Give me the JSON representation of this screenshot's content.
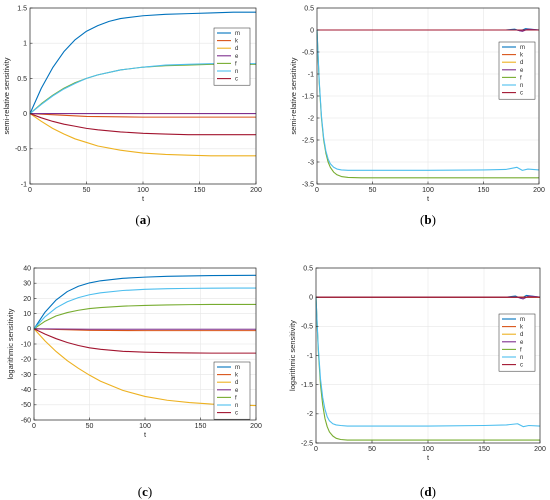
{
  "colors": {
    "m": "#0072BD",
    "k": "#D95319",
    "d": "#EDB120",
    "e": "#7E2F8E",
    "f": "#77AC30",
    "n": "#4DBEEE",
    "c": "#A2142F"
  },
  "chart_data": [
    {
      "type": "line",
      "caption": "a",
      "xlabel": "t",
      "ylabel": "semi-relative sensitivity",
      "xlim": [
        0,
        200
      ],
      "ylim": [
        -1,
        1.5
      ],
      "xticks": [
        0,
        50,
        100,
        150,
        200
      ],
      "yticks": [
        -1,
        -0.5,
        0,
        0.5,
        1,
        1.5
      ],
      "ytick_labels": [
        "-1",
        "-0.5",
        "0",
        "0.5",
        "1",
        "1.5"
      ],
      "grid": true,
      "legend": "top-right",
      "series": [
        {
          "name": "m",
          "x": [
            0,
            10,
            20,
            30,
            40,
            50,
            60,
            70,
            80,
            100,
            120,
            140,
            160,
            180,
            200
          ],
          "values": [
            0,
            0.36,
            0.65,
            0.88,
            1.05,
            1.17,
            1.25,
            1.31,
            1.35,
            1.39,
            1.41,
            1.42,
            1.43,
            1.44,
            1.44
          ]
        },
        {
          "name": "k",
          "x": [
            0,
            50,
            100,
            150,
            200
          ],
          "values": [
            0,
            -0.04,
            -0.05,
            -0.05,
            -0.05
          ]
        },
        {
          "name": "d",
          "x": [
            0,
            10,
            20,
            30,
            40,
            50,
            60,
            80,
            100,
            120,
            140,
            160,
            180,
            200
          ],
          "values": [
            0,
            -0.11,
            -0.21,
            -0.29,
            -0.36,
            -0.41,
            -0.46,
            -0.52,
            -0.56,
            -0.58,
            -0.59,
            -0.6,
            -0.6,
            -0.6
          ]
        },
        {
          "name": "e",
          "x": [
            0,
            50,
            100,
            150,
            200
          ],
          "values": [
            0,
            0,
            0,
            0,
            0
          ]
        },
        {
          "name": "f",
          "x": [
            0,
            10,
            20,
            30,
            40,
            50,
            60,
            80,
            100,
            120,
            140,
            160,
            180,
            200
          ],
          "values": [
            0,
            0.14,
            0.26,
            0.36,
            0.44,
            0.5,
            0.55,
            0.62,
            0.66,
            0.68,
            0.69,
            0.7,
            0.7,
            0.7
          ]
        },
        {
          "name": "n",
          "x": [
            0,
            10,
            20,
            30,
            40,
            50,
            60,
            80,
            100,
            120,
            140,
            160,
            180,
            200
          ],
          "values": [
            0,
            0.13,
            0.25,
            0.35,
            0.43,
            0.5,
            0.55,
            0.62,
            0.66,
            0.69,
            0.7,
            0.71,
            0.71,
            0.71
          ]
        },
        {
          "name": "c",
          "x": [
            0,
            10,
            20,
            30,
            40,
            50,
            60,
            80,
            100,
            120,
            140,
            160,
            180,
            200
          ],
          "values": [
            0,
            -0.06,
            -0.11,
            -0.15,
            -0.18,
            -0.21,
            -0.23,
            -0.26,
            -0.28,
            -0.29,
            -0.3,
            -0.3,
            -0.3,
            -0.3
          ]
        }
      ]
    },
    {
      "type": "line",
      "caption": "b",
      "xlabel": "t",
      "ylabel": "semi-relative sensitivity",
      "xlim": [
        0,
        200
      ],
      "ylim": [
        -3.5,
        0.5
      ],
      "xticks": [
        0,
        50,
        100,
        150,
        200
      ],
      "yticks": [
        -3.5,
        -3,
        -2.5,
        -2,
        -1.5,
        -1,
        -0.5,
        0,
        0.5
      ],
      "ytick_labels": [
        "-3.5",
        "-3",
        "-2.5",
        "-2",
        "-1.5",
        "-1",
        "-0.5",
        "0",
        "0.5"
      ],
      "grid": true,
      "legend": "right",
      "series": [
        {
          "name": "m",
          "x": [
            0,
            170,
            178,
            183,
            188,
            200
          ],
          "values": [
            0,
            0,
            0.02,
            -0.02,
            0.03,
            0
          ]
        },
        {
          "name": "k",
          "x": [
            0,
            200
          ],
          "values": [
            0,
            0
          ]
        },
        {
          "name": "d",
          "x": [
            0,
            200
          ],
          "values": [
            0,
            0
          ]
        },
        {
          "name": "e",
          "x": [
            0,
            180,
            185,
            190,
            200
          ],
          "values": [
            0,
            0,
            -0.03,
            0.02,
            0
          ]
        },
        {
          "name": "f",
          "x": [
            0,
            2,
            4,
            6,
            8,
            10,
            12,
            15,
            18,
            22,
            28,
            40,
            60,
            100,
            150,
            200
          ],
          "values": [
            0,
            -1.2,
            -2.0,
            -2.5,
            -2.8,
            -3.0,
            -3.12,
            -3.23,
            -3.29,
            -3.33,
            -3.35,
            -3.36,
            -3.36,
            -3.36,
            -3.36,
            -3.36
          ]
        },
        {
          "name": "n",
          "x": [
            0,
            2,
            4,
            6,
            8,
            10,
            12,
            15,
            18,
            22,
            28,
            40,
            60,
            100,
            150,
            170,
            180,
            185,
            190,
            200
          ],
          "values": [
            0,
            -1.15,
            -1.95,
            -2.45,
            -2.75,
            -2.93,
            -3.04,
            -3.12,
            -3.16,
            -3.18,
            -3.19,
            -3.19,
            -3.19,
            -3.19,
            -3.18,
            -3.17,
            -3.12,
            -3.19,
            -3.16,
            -3.18
          ]
        },
        {
          "name": "c",
          "x": [
            0,
            200
          ],
          "values": [
            0,
            0
          ]
        }
      ]
    },
    {
      "type": "line",
      "caption": "c",
      "xlabel": "t",
      "ylabel": "logarithmic sensitivity",
      "xlim": [
        0,
        200
      ],
      "ylim": [
        -60,
        40
      ],
      "xticks": [
        0,
        50,
        100,
        150,
        200
      ],
      "yticks": [
        -60,
        -50,
        -40,
        -30,
        -20,
        -10,
        0,
        10,
        20,
        30,
        40
      ],
      "ytick_labels": [
        "-60",
        "-50",
        "-40",
        "-30",
        "-20",
        "-10",
        "0",
        "10",
        "20",
        "30",
        "40"
      ],
      "grid": true,
      "legend": "bottom-right",
      "series": [
        {
          "name": "m",
          "x": [
            0,
            10,
            20,
            30,
            40,
            50,
            60,
            80,
            100,
            120,
            140,
            160,
            180,
            200
          ],
          "values": [
            0,
            11,
            19,
            24.5,
            28,
            30.2,
            31.6,
            33.2,
            34,
            34.5,
            34.8,
            35,
            35.1,
            35.2
          ]
        },
        {
          "name": "k",
          "x": [
            0,
            50,
            100,
            150,
            200
          ],
          "values": [
            0,
            -1,
            -1.2,
            -1.2,
            -1.2
          ]
        },
        {
          "name": "d",
          "x": [
            0,
            10,
            20,
            30,
            40,
            50,
            60,
            80,
            100,
            120,
            140,
            160,
            180,
            200
          ],
          "values": [
            0,
            -8,
            -15,
            -21,
            -26,
            -30.5,
            -34.5,
            -40.5,
            -44.5,
            -47,
            -48.5,
            -49.5,
            -50,
            -50.5
          ]
        },
        {
          "name": "e",
          "x": [
            0,
            50,
            100,
            150,
            200
          ],
          "values": [
            0,
            -0.3,
            -0.3,
            -0.3,
            -0.3
          ]
        },
        {
          "name": "f",
          "x": [
            0,
            10,
            20,
            30,
            40,
            50,
            60,
            80,
            100,
            120,
            140,
            160,
            180,
            200
          ],
          "values": [
            0,
            5,
            8.5,
            10.7,
            12.2,
            13.3,
            14,
            14.9,
            15.4,
            15.7,
            15.9,
            16,
            16,
            16
          ]
        },
        {
          "name": "n",
          "x": [
            0,
            10,
            20,
            30,
            40,
            50,
            60,
            80,
            100,
            120,
            140,
            160,
            180,
            200
          ],
          "values": [
            0,
            8,
            13.8,
            17.8,
            20.5,
            22.4,
            23.7,
            25.2,
            26,
            26.4,
            26.6,
            26.7,
            26.8,
            26.8
          ]
        },
        {
          "name": "c",
          "x": [
            0,
            10,
            20,
            30,
            40,
            50,
            60,
            80,
            100,
            120,
            140,
            160,
            180,
            200
          ],
          "values": [
            0,
            -3.5,
            -6.5,
            -9,
            -11,
            -12.5,
            -13.5,
            -14.8,
            -15.4,
            -15.7,
            -15.9,
            -16,
            -16,
            -16
          ]
        }
      ]
    },
    {
      "type": "line",
      "caption": "d",
      "xlabel": "t",
      "ylabel": "logarithmic sensitivity",
      "xlim": [
        0,
        200
      ],
      "ylim": [
        -2.5,
        0.5
      ],
      "xticks": [
        0,
        50,
        100,
        150,
        200
      ],
      "yticks": [
        -2.5,
        -2,
        -1.5,
        -1,
        -0.5,
        0,
        0.5
      ],
      "ytick_labels": [
        "-2.5",
        "-2",
        "-1.5",
        "-1",
        "-0.5",
        "0",
        "0.5"
      ],
      "grid": true,
      "legend": "right",
      "series": [
        {
          "name": "m",
          "x": [
            0,
            170,
            178,
            183,
            188,
            200
          ],
          "values": [
            0,
            0,
            0.02,
            -0.02,
            0.03,
            0
          ]
        },
        {
          "name": "k",
          "x": [
            0,
            200
          ],
          "values": [
            0,
            0
          ]
        },
        {
          "name": "d",
          "x": [
            0,
            200
          ],
          "values": [
            0,
            0
          ]
        },
        {
          "name": "e",
          "x": [
            0,
            180,
            185,
            190,
            200
          ],
          "values": [
            0,
            0,
            -0.03,
            0.02,
            0
          ]
        },
        {
          "name": "f",
          "x": [
            0,
            2,
            4,
            6,
            8,
            10,
            12,
            15,
            18,
            22,
            28,
            40,
            60,
            100,
            150,
            200
          ],
          "values": [
            0,
            -0.9,
            -1.5,
            -1.85,
            -2.08,
            -2.22,
            -2.31,
            -2.38,
            -2.42,
            -2.44,
            -2.45,
            -2.45,
            -2.45,
            -2.45,
            -2.45,
            -2.45
          ]
        },
        {
          "name": "n",
          "x": [
            0,
            2,
            4,
            6,
            8,
            10,
            12,
            15,
            18,
            22,
            28,
            40,
            60,
            100,
            150,
            170,
            180,
            185,
            190,
            200
          ],
          "values": [
            0,
            -0.85,
            -1.4,
            -1.72,
            -1.92,
            -2.05,
            -2.12,
            -2.17,
            -2.19,
            -2.2,
            -2.21,
            -2.21,
            -2.21,
            -2.21,
            -2.2,
            -2.19,
            -2.17,
            -2.22,
            -2.2,
            -2.21
          ]
        },
        {
          "name": "c",
          "x": [
            0,
            200
          ],
          "values": [
            0,
            0
          ]
        }
      ]
    }
  ]
}
